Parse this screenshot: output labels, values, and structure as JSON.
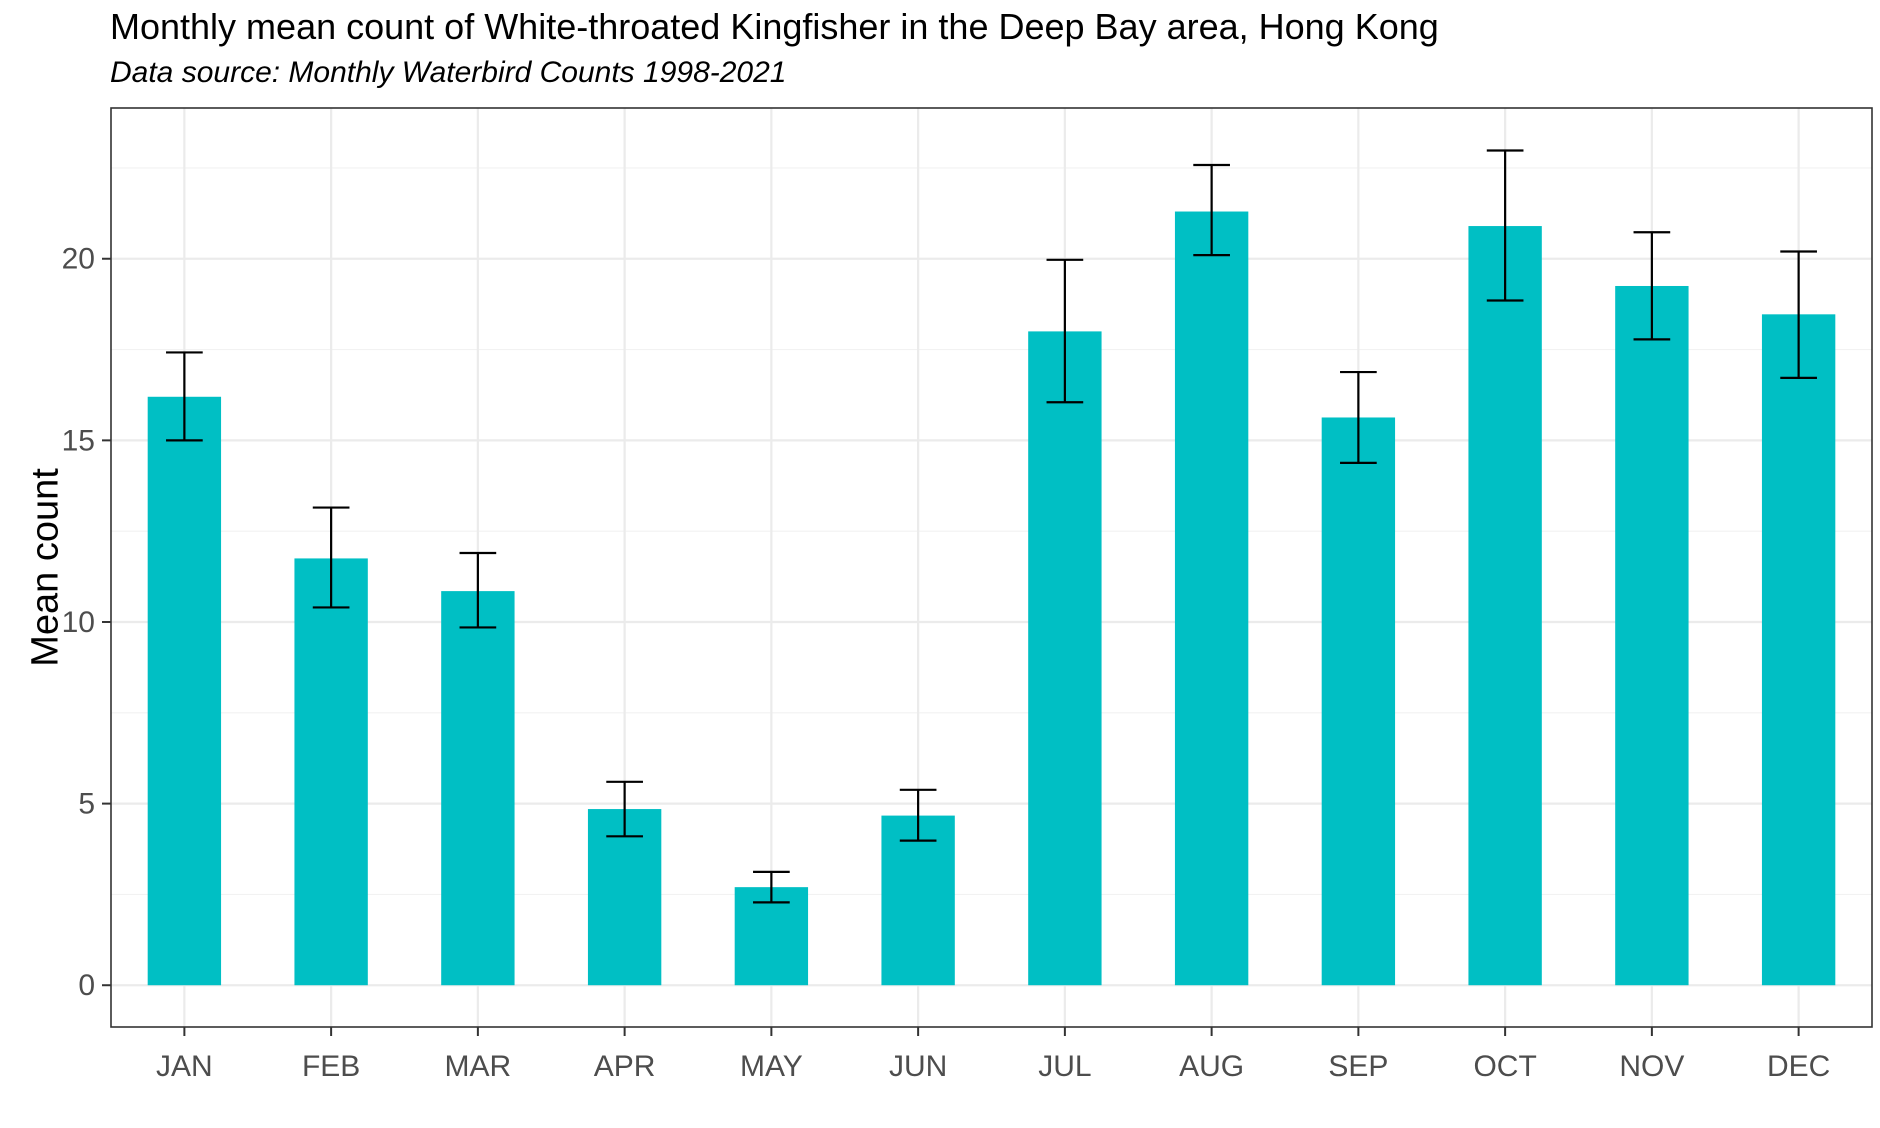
{
  "chart_data": {
    "type": "bar",
    "title": "Monthly mean count of White-throated Kingfisher in the Deep Bay area, Hong Kong",
    "subtitle": "Data source: Monthly Waterbird Counts 1998-2021",
    "xlabel": "",
    "ylabel": "Mean count",
    "categories": [
      "JAN",
      "FEB",
      "MAR",
      "APR",
      "MAY",
      "JUN",
      "JUL",
      "AUG",
      "SEP",
      "OCT",
      "NOV",
      "DEC"
    ],
    "values": [
      16.2,
      11.75,
      10.85,
      4.85,
      2.7,
      4.67,
      18.0,
      21.3,
      15.63,
      20.9,
      19.25,
      18.47
    ],
    "error_low": [
      15.0,
      10.4,
      9.85,
      4.1,
      2.28,
      3.98,
      16.05,
      20.1,
      14.38,
      18.85,
      17.78,
      16.72
    ],
    "error_high": [
      17.42,
      13.15,
      11.9,
      5.6,
      3.12,
      5.38,
      19.97,
      22.58,
      16.88,
      22.98,
      20.73,
      20.2
    ],
    "yticks": [
      0,
      5,
      10,
      15,
      20
    ],
    "ylim": [
      -1.15,
      24.15
    ],
    "grid": true,
    "legend": "none",
    "bar_color": "#00BFC4"
  }
}
